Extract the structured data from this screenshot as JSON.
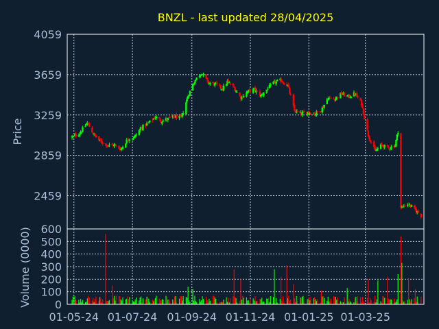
{
  "chart_data": [
    {
      "type": "candlestick",
      "title": "BNZL - last updated 28/04/2025",
      "ylabel": "Price",
      "ylim": [
        2130,
        4059
      ],
      "yticks": [
        4059,
        3659,
        3259,
        2859,
        2459
      ],
      "xticks": [
        "01-05-24",
        "01-07-24",
        "01-09-24",
        "01-11-24",
        "01-01-25",
        "01-03-25"
      ],
      "grid": true,
      "up_color": "#00ff00",
      "down_color": "#ff0000",
      "close_anchors": [
        [
          "2024-04-29",
          3040
        ],
        [
          "2024-05-07",
          3080
        ],
        [
          "2024-05-15",
          3180
        ],
        [
          "2024-05-22",
          3060
        ],
        [
          "2024-05-28",
          3000
        ],
        [
          "2024-06-05",
          2960
        ],
        [
          "2024-06-12",
          2960
        ],
        [
          "2024-06-19",
          2920
        ],
        [
          "2024-06-26",
          3020
        ],
        [
          "2024-07-03",
          3040
        ],
        [
          "2024-07-10",
          3130
        ],
        [
          "2024-07-18",
          3180
        ],
        [
          "2024-07-25",
          3240
        ],
        [
          "2024-07-31",
          3200
        ],
        [
          "2024-08-07",
          3220
        ],
        [
          "2024-08-14",
          3240
        ],
        [
          "2024-08-21",
          3230
        ],
        [
          "2024-08-28",
          3450
        ],
        [
          "2024-09-04",
          3600
        ],
        [
          "2024-09-11",
          3680
        ],
        [
          "2024-09-18",
          3580
        ],
        [
          "2024-09-26",
          3560
        ],
        [
          "2024-10-03",
          3520
        ],
        [
          "2024-10-08",
          3590
        ],
        [
          "2024-10-15",
          3530
        ],
        [
          "2024-10-22",
          3430
        ],
        [
          "2024-10-29",
          3490
        ],
        [
          "2024-11-05",
          3510
        ],
        [
          "2024-11-12",
          3450
        ],
        [
          "2024-11-19",
          3520
        ],
        [
          "2024-11-26",
          3580
        ],
        [
          "2024-12-03",
          3600
        ],
        [
          "2024-12-10",
          3550
        ],
        [
          "2024-12-17",
          3300
        ],
        [
          "2024-12-24",
          3270
        ],
        [
          "2024-12-31",
          3290
        ],
        [
          "2025-01-07",
          3270
        ],
        [
          "2025-01-14",
          3310
        ],
        [
          "2025-01-21",
          3430
        ],
        [
          "2025-01-28",
          3420
        ],
        [
          "2025-02-04",
          3470
        ],
        [
          "2025-02-11",
          3440
        ],
        [
          "2025-02-18",
          3470
        ],
        [
          "2025-02-25",
          3370
        ],
        [
          "2025-03-04",
          3060
        ],
        [
          "2025-03-11",
          2900
        ],
        [
          "2025-03-18",
          2960
        ],
        [
          "2025-03-25",
          2930
        ],
        [
          "2025-04-01",
          2960
        ],
        [
          "2025-04-04",
          3100
        ],
        [
          "2025-04-07",
          2340
        ],
        [
          "2025-04-14",
          2380
        ],
        [
          "2025-04-22",
          2320
        ],
        [
          "2025-04-28",
          2260
        ]
      ]
    },
    {
      "type": "bar",
      "ylabel": "Volume (0000)",
      "ylim": [
        0,
        600
      ],
      "yticks": [
        600,
        500,
        400,
        300,
        200,
        100,
        0
      ],
      "grid": true,
      "typical_volume": 40,
      "spikes": [
        [
          "2024-06-03",
          560
        ],
        [
          "2024-06-10",
          150
        ],
        [
          "2024-08-28",
          140
        ],
        [
          "2024-09-02",
          120
        ],
        [
          "2024-10-15",
          280
        ],
        [
          "2024-10-22",
          200
        ],
        [
          "2024-11-26",
          280
        ],
        [
          "2024-12-03",
          220
        ],
        [
          "2024-12-09",
          310
        ],
        [
          "2024-12-16",
          160
        ],
        [
          "2025-01-14",
          110
        ],
        [
          "2025-02-10",
          130
        ],
        [
          "2025-03-04",
          200
        ],
        [
          "2025-03-14",
          190
        ],
        [
          "2025-03-24",
          220
        ],
        [
          "2025-04-04",
          240
        ],
        [
          "2025-04-07",
          540
        ],
        [
          "2025-04-08",
          330
        ],
        [
          "2025-04-15",
          210
        ],
        [
          "2025-04-22",
          120
        ]
      ]
    }
  ]
}
